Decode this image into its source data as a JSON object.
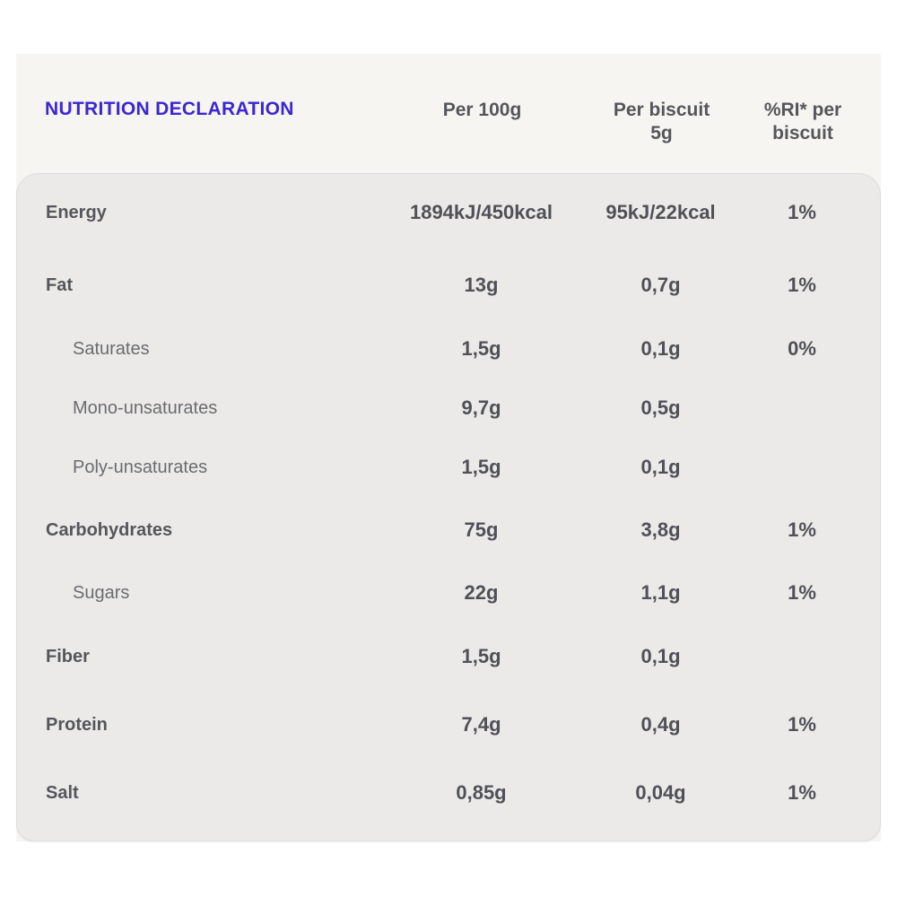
{
  "table": {
    "title": "NUTRITION DECLARATION",
    "columns": {
      "per100g": "Per 100g",
      "per_biscuit_line1": "Per biscuit",
      "per_biscuit_line2": "5g",
      "ri_line1": "%RI* per",
      "ri_line2": "biscuit"
    },
    "rows": [
      {
        "label": "Energy",
        "sub": false,
        "per100g": "1894kJ/450kcal",
        "per_biscuit": "95kJ/22kcal",
        "ri": "1%"
      },
      {
        "label": "Fat",
        "sub": false,
        "per100g": "13g",
        "per_biscuit": "0,7g",
        "ri": "1%"
      },
      {
        "label": "Saturates",
        "sub": true,
        "per100g": "1,5g",
        "per_biscuit": "0,1g",
        "ri": "0%"
      },
      {
        "label": "Mono-unsaturates",
        "sub": true,
        "per100g": "9,7g",
        "per_biscuit": "0,5g",
        "ri": ""
      },
      {
        "label": "Poly-unsaturates",
        "sub": true,
        "per100g": "1,5g",
        "per_biscuit": "0,1g",
        "ri": ""
      },
      {
        "label": "Carbohydrates",
        "sub": false,
        "per100g": "75g",
        "per_biscuit": "3,8g",
        "ri": "1%"
      },
      {
        "label": "Sugars",
        "sub": true,
        "per100g": "22g",
        "per_biscuit": "1,1g",
        "ri": "1%"
      },
      {
        "label": "Fiber",
        "sub": false,
        "per100g": "1,5g",
        "per_biscuit": "0,1g",
        "ri": ""
      },
      {
        "label": "Protein",
        "sub": false,
        "per100g": "7,4g",
        "per_biscuit": "0,4g",
        "ri": "1%"
      },
      {
        "label": "Salt",
        "sub": false,
        "per100g": "0,85g",
        "per_biscuit": "0,04g",
        "ri": "1%"
      }
    ]
  },
  "colors": {
    "page_bg": "#ffffff",
    "card_bg": "#f6f5f2",
    "body_bg": "#ebeae9",
    "title_text": "#3b27d1",
    "header_text": "#55565b",
    "label_text": "#55565b",
    "sub_label_text": "#6b6c70",
    "value_text": "#505157"
  }
}
